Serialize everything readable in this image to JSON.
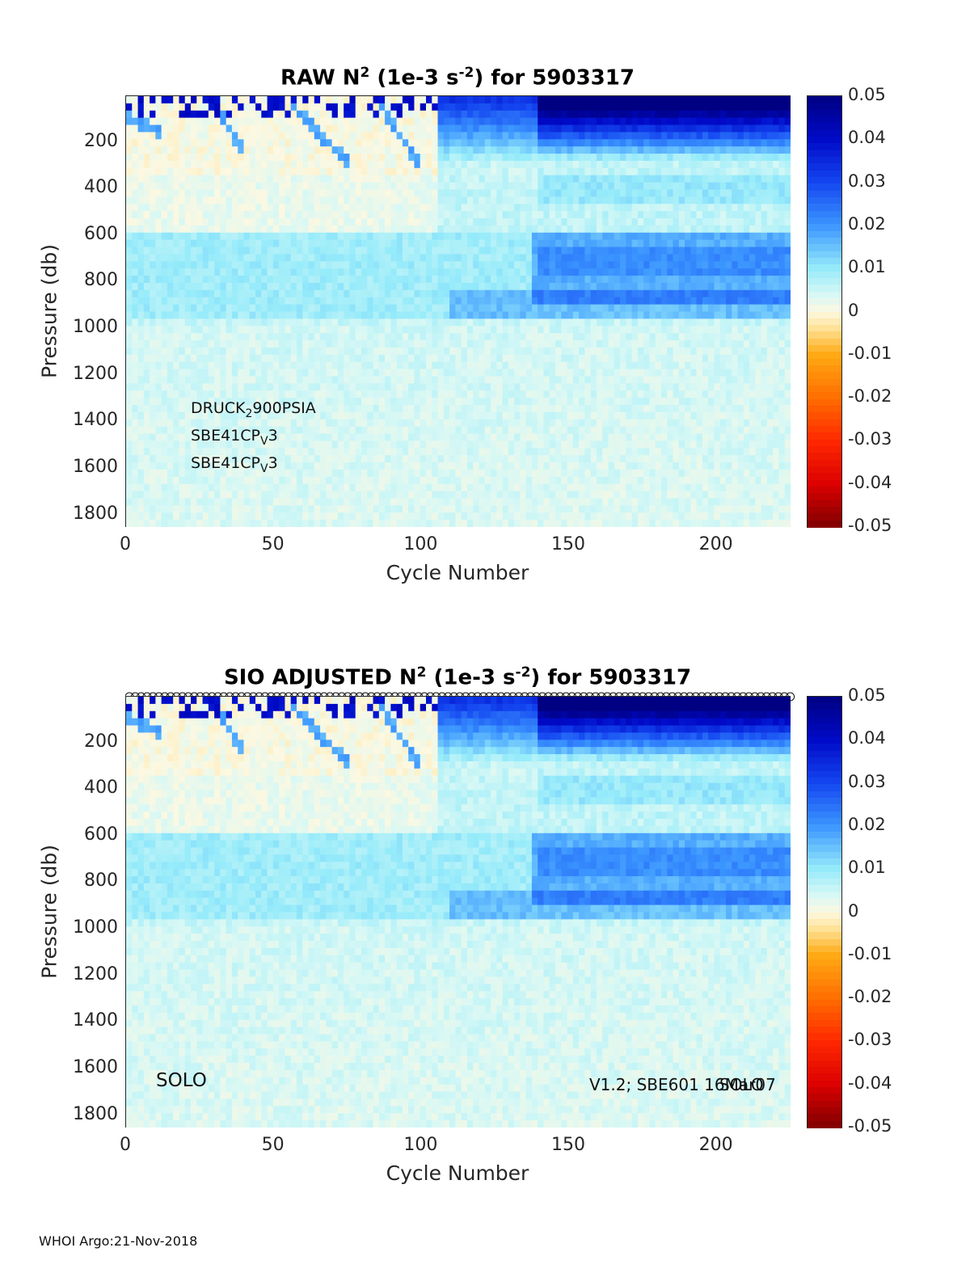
{
  "chart_data": [
    {
      "type": "heatmap",
      "title_prefix": "RAW N",
      "title_suffix": " (1e-3 s",
      "title_suffix2": ") for 5903317",
      "title_sup1": "2",
      "title_sup2": "-2",
      "xlabel": "Cycle Number",
      "ylabel": "Pressure (db)",
      "xlim": [
        0,
        225
      ],
      "ylim": [
        1850,
        0
      ],
      "xticks": [
        "0",
        "50",
        "100",
        "150",
        "200"
      ],
      "yticks": [
        "200",
        "400",
        "600",
        "800",
        "1000",
        "1200",
        "1400",
        "1600",
        "1800"
      ],
      "colorbar_ticks": [
        "0.05",
        "0.04",
        "0.03",
        "0.02",
        "0.01",
        "0",
        "-0.01",
        "-0.02",
        "-0.03",
        "-0.04",
        "-0.05"
      ],
      "clim": [
        -0.05,
        0.05
      ],
      "colormap": "jet-diverging",
      "annotations": {
        "line1_a": "DRUCK",
        "line1_sub": "2",
        "line1_b": "900PSIA",
        "line2_a": "SBE41CP",
        "line2_sub": "V",
        "line2_b": "3",
        "line3_a": "SBE41CP",
        "line3_sub": "V",
        "line3_b": "3"
      }
    },
    {
      "type": "heatmap",
      "title_prefix": "SIO  ADJUSTED N",
      "title_suffix": " (1e-3 s",
      "title_suffix2": ") for 5903317",
      "title_sup1": "2",
      "title_sup2": "-2",
      "xlabel": "Cycle Number",
      "ylabel": "Pressure (db)",
      "xlim": [
        0,
        225
      ],
      "ylim": [
        1850,
        0
      ],
      "xticks": [
        "0",
        "50",
        "100",
        "150",
        "200"
      ],
      "yticks": [
        "200",
        "400",
        "600",
        "800",
        "1000",
        "1200",
        "1400",
        "1600",
        "1800"
      ],
      "colorbar_ticks": [
        "0.05",
        "0.04",
        "0.03",
        "0.02",
        "0.01",
        "0",
        "-0.01",
        "-0.02",
        "-0.03",
        "-0.04",
        "-0.05"
      ],
      "clim": [
        -0.05,
        0.05
      ],
      "colormap": "jet-diverging",
      "annotations": {
        "left": "SOLO",
        "right": "V1.2; SBE601 16Mar07",
        "right_overlap": "SOLO"
      }
    }
  ],
  "footer": "WHOI Argo:21-Nov-2018",
  "colors": {
    "deep_blue": "#00008f",
    "mid_blue": "#3f7fff",
    "cyan_light": "#b5f2fb",
    "pale": "#dff9f8",
    "cream": "#fff3d0",
    "orange": "#ff9f00",
    "red": "#ff2000",
    "dark_red": "#800000"
  }
}
